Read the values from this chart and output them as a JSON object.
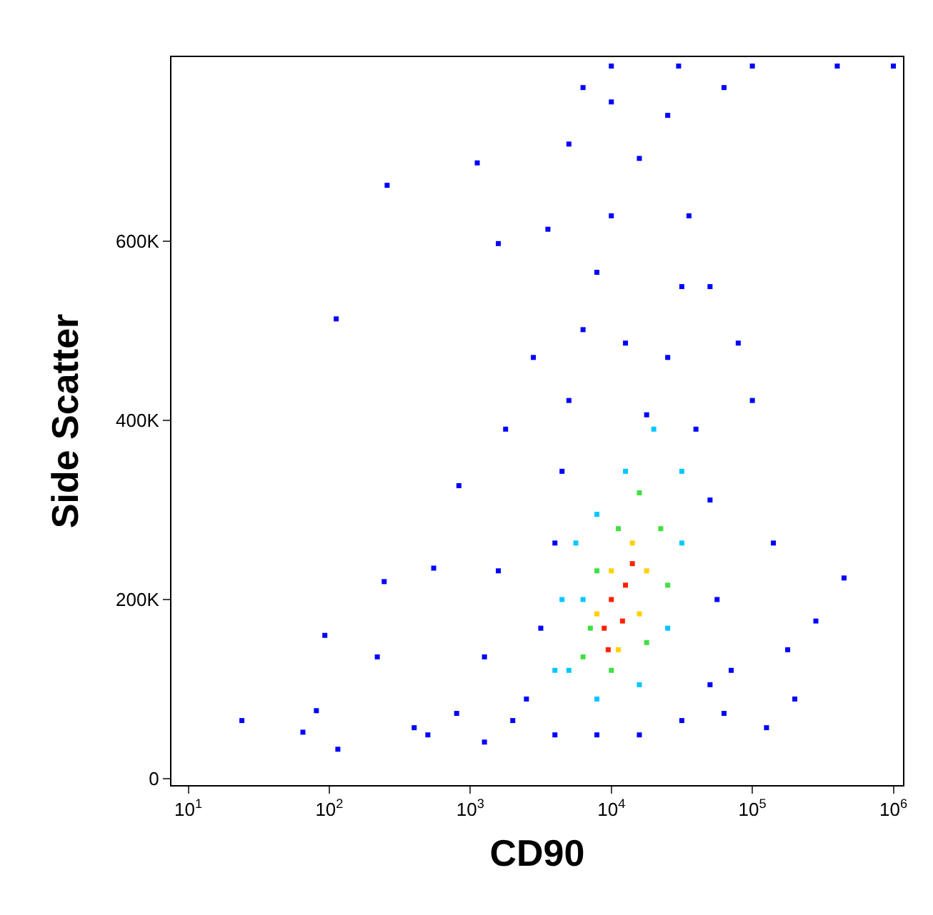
{
  "chart_data": {
    "type": "scatter",
    "xlabel": "CD90",
    "ylabel": "Side Scatter",
    "log": "x",
    "grid": false,
    "marker": "square",
    "xlim": [
      7.6,
      1170000
    ],
    "ylim": [
      -7000,
      805000
    ],
    "xticks": [
      {
        "value": 10,
        "label": "10$^{1}$"
      },
      {
        "value": 100,
        "label": "10$^{2}$"
      },
      {
        "value": 1000,
        "label": "10$^{3}$"
      },
      {
        "value": 10000,
        "label": "10$^{4}$"
      },
      {
        "value": 100000,
        "label": "10$^{5}$"
      },
      {
        "value": 1000000,
        "label": "10$^{6}$"
      }
    ],
    "yticks": [
      0,
      {
        "value": 200000,
        "label": "200K"
      },
      {
        "value": 400000,
        "label": "400K"
      },
      {
        "value": 600000,
        "label": "600K"
      }
    ],
    "series": [
      {
        "color": "#0000ff",
        "x": [
          24,
          65,
          81,
          115,
          93,
          112,
          257,
          245,
          219,
          550,
          830,
          1120,
          1580,
          400,
          800,
          2000,
          1260,
          1580,
          1780,
          2800,
          3550,
          5000,
          6300,
          10000,
          15800,
          25100,
          35500,
          50100,
          63000,
          79400,
          100000,
          141000,
          178000,
          282000,
          447000,
          200000,
          126000,
          63000,
          31600,
          15800,
          7900,
          3980,
          2500,
          3160,
          3980,
          4470,
          5000,
          6300,
          7900,
          10000,
          12600,
          17800,
          25100,
          31600,
          39800,
          50100,
          56200,
          70800,
          50100,
          1260,
          500,
          10000,
          30000,
          100000,
          400000,
          1000000
        ],
        "values": [
          65000,
          52000,
          76000,
          33000,
          160000,
          513000,
          662000,
          220000,
          136000,
          235000,
          327000,
          687000,
          597000,
          57000,
          73000,
          65000,
          136000,
          232000,
          390000,
          470000,
          613000,
          708000,
          771000,
          755000,
          692000,
          740000,
          628000,
          549000,
          771000,
          486000,
          422000,
          263000,
          144000,
          176000,
          224000,
          89000,
          57000,
          73000,
          65000,
          49000,
          49000,
          49000,
          89000,
          168000,
          263000,
          343000,
          422000,
          501000,
          565000,
          628000,
          486000,
          406000,
          470000,
          549000,
          390000,
          311000,
          200000,
          121000,
          105000,
          41000,
          49000,
          795000,
          795000,
          795000,
          795000,
          795000
        ]
      },
      {
        "color": "#00c8ff",
        "x": [
          5000,
          6300,
          7900,
          12600,
          20000,
          31600,
          31600,
          25100,
          15800,
          7900,
          3980,
          4470,
          5600
        ],
        "values": [
          121000,
          200000,
          295000,
          343000,
          390000,
          343000,
          263000,
          168000,
          105000,
          89000,
          121000,
          200000,
          263000
        ]
      },
      {
        "color": "#40e040",
        "x": [
          7100,
          7900,
          11200,
          15800,
          22400,
          25100,
          17800,
          10000,
          6300
        ],
        "values": [
          168000,
          232000,
          279000,
          319000,
          279000,
          216000,
          152000,
          121000,
          136000
        ]
      },
      {
        "color": "#ffd000",
        "x": [
          7900,
          10000,
          14100,
          17800,
          15800,
          11200
        ],
        "values": [
          184000,
          232000,
          263000,
          232000,
          184000,
          144000
        ]
      },
      {
        "color": "#ff2000",
        "x": [
          8900,
          10000,
          12600,
          12000,
          9500,
          14100
        ],
        "values": [
          168000,
          200000,
          216000,
          176000,
          144000,
          240000
        ]
      }
    ]
  }
}
